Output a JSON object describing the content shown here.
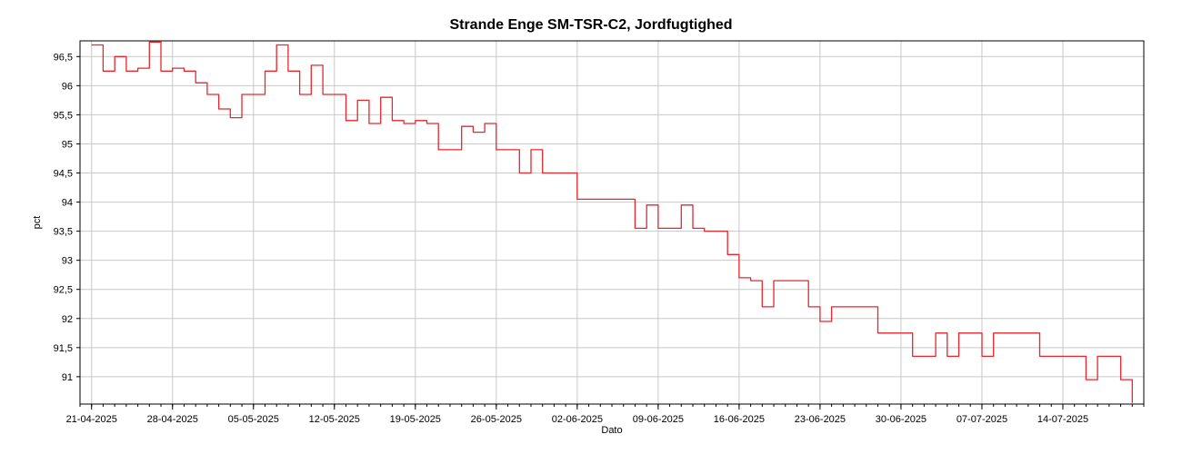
{
  "chart_data": {
    "type": "line",
    "title": "Strande Enge SM-TSR-C2, Jordfugtighed",
    "xlabel": "Dato",
    "ylabel": "pct",
    "x_ticks": [
      "21-04-2025",
      "28-04-2025",
      "05-05-2025",
      "12-05-2025",
      "19-05-2025",
      "26-05-2025",
      "02-06-2025",
      "09-06-2025",
      "16-06-2025",
      "23-06-2025",
      "30-06-2025",
      "07-07-2025",
      "14-07-2025"
    ],
    "y_ticks": [
      "91",
      "91,5",
      "92",
      "92,5",
      "93",
      "93,5",
      "94",
      "94,5",
      "95",
      "95,5",
      "96",
      "96,5"
    ],
    "xlim": [
      "2025-04-20",
      "2025-07-21"
    ],
    "ylim": [
      90.53,
      96.77
    ],
    "grid": true,
    "line_color": "#e8262b",
    "series": [
      {
        "x": [
          "2025-04-21",
          "2025-04-22",
          "2025-04-23",
          "2025-04-24",
          "2025-04-25",
          "2025-04-26",
          "2025-04-27",
          "2025-04-28",
          "2025-04-29",
          "2025-04-30",
          "2025-05-01",
          "2025-05-02",
          "2025-05-03",
          "2025-05-04",
          "2025-05-05",
          "2025-05-06",
          "2025-05-07",
          "2025-05-08",
          "2025-05-09",
          "2025-05-10",
          "2025-05-11",
          "2025-05-12",
          "2025-05-13",
          "2025-05-14",
          "2025-05-15",
          "2025-05-16",
          "2025-05-17",
          "2025-05-18",
          "2025-05-19",
          "2025-05-20",
          "2025-05-21",
          "2025-05-22",
          "2025-05-23",
          "2025-05-24",
          "2025-05-25",
          "2025-05-26",
          "2025-05-27",
          "2025-05-28",
          "2025-05-29",
          "2025-05-30",
          "2025-05-31",
          "2025-06-01",
          "2025-06-02",
          "2025-06-03",
          "2025-06-04",
          "2025-06-05",
          "2025-06-06",
          "2025-06-07",
          "2025-06-08",
          "2025-06-09",
          "2025-06-10",
          "2025-06-11",
          "2025-06-12",
          "2025-06-13",
          "2025-06-14",
          "2025-06-15",
          "2025-06-16",
          "2025-06-17",
          "2025-06-18",
          "2025-06-19",
          "2025-06-20",
          "2025-06-21",
          "2025-06-22",
          "2025-06-23",
          "2025-06-24",
          "2025-06-25",
          "2025-06-26",
          "2025-06-27",
          "2025-06-28",
          "2025-06-29",
          "2025-06-30",
          "2025-07-01",
          "2025-07-02",
          "2025-07-03",
          "2025-07-04",
          "2025-07-05",
          "2025-07-06",
          "2025-07-07",
          "2025-07-08",
          "2025-07-09",
          "2025-07-10",
          "2025-07-11",
          "2025-07-12",
          "2025-07-13",
          "2025-07-14",
          "2025-07-15",
          "2025-07-16",
          "2025-07-17",
          "2025-07-18",
          "2025-07-19",
          "2025-07-20"
        ],
        "y": [
          96.7,
          96.25,
          96.5,
          96.25,
          96.3,
          96.75,
          96.25,
          96.3,
          96.25,
          96.05,
          95.85,
          95.6,
          95.45,
          95.85,
          95.85,
          96.25,
          96.7,
          96.25,
          95.85,
          96.35,
          95.85,
          95.85,
          95.4,
          95.75,
          95.35,
          95.8,
          95.4,
          95.35,
          95.4,
          95.35,
          94.9,
          94.9,
          95.3,
          95.2,
          95.35,
          94.9,
          94.9,
          94.5,
          94.9,
          94.5,
          94.5,
          94.5,
          94.05,
          94.05,
          94.05,
          94.05,
          94.05,
          93.55,
          93.95,
          93.55,
          93.55,
          93.95,
          93.55,
          93.5,
          93.5,
          93.1,
          92.7,
          92.65,
          92.2,
          92.65,
          92.65,
          92.65,
          92.2,
          91.95,
          92.2,
          92.2,
          92.2,
          92.2,
          91.75,
          91.75,
          91.75,
          91.35,
          91.35,
          91.75,
          91.35,
          91.75,
          91.75,
          91.35,
          91.75,
          91.75,
          91.75,
          91.75,
          91.35,
          91.35,
          91.35,
          91.35,
          90.95,
          91.35,
          91.35,
          90.95,
          90.55
        ]
      }
    ]
  }
}
